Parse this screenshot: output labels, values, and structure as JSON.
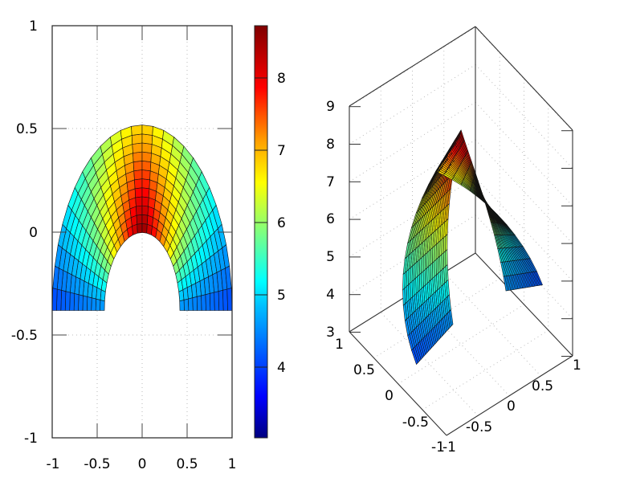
{
  "chart_data": [
    {
      "type": "heatmap",
      "subtype": "projected-surface-map",
      "title": "",
      "xlabel": "",
      "ylabel": "",
      "xlim": [
        -1,
        1
      ],
      "ylim": [
        -1,
        1
      ],
      "x_ticks": [
        "-1",
        "-0.5",
        "0",
        "0.5",
        "1"
      ],
      "y_ticks": [
        "1",
        "0.5",
        "0",
        "-0.5",
        "-1"
      ],
      "grid": true,
      "colorbar": {
        "range": [
          3.1,
          8.7
        ],
        "ticks": [
          "8",
          "7",
          "6",
          "5",
          "4"
        ],
        "palette": [
          "#00007f",
          "#0000ff",
          "#007fff",
          "#00ffff",
          "#7fff7f",
          "#ffff00",
          "#ff7f00",
          "#ff0000",
          "#7f0000"
        ]
      },
      "description": "Arch-shaped mesh surface (top view), apex near y=0.48 at x=0, outer corners at (±1, 0), inner notch tip at (0, 0.06), lower tips near (±0.33, -0.45); color encodes z."
    },
    {
      "type": "surface",
      "subtype": "3d-surface",
      "title": "",
      "x_ticks": [
        "-1",
        "-0.5",
        "0",
        "0.5",
        "1"
      ],
      "y_ticks": [
        "-1",
        "-0.5",
        "0",
        "0.5",
        "1"
      ],
      "z_ticks": [
        "3",
        "4",
        "5",
        "6",
        "7",
        "8",
        "9"
      ],
      "zlim": [
        3,
        9
      ],
      "grid": true,
      "description": "3D view of the same arch surface; peak near z≈8.7, descending to z≈3 at the ends."
    }
  ],
  "left_plot": {
    "x_tick_labels": [
      "-1",
      "-0.5",
      "0",
      "0.5",
      "1"
    ],
    "y_tick_labels": [
      "1",
      "0.5",
      "0",
      "-0.5",
      "-1"
    ],
    "colorbar_labels": [
      "8",
      "7",
      "6",
      "5",
      "4"
    ]
  },
  "right_plot": {
    "z_tick_labels": [
      "9",
      "8",
      "7",
      "6",
      "5",
      "4",
      "3"
    ],
    "y_tick_labels_left": [
      "1",
      "0.5",
      "0",
      "-0.5",
      "-1"
    ],
    "x_tick_labels_right": [
      "-1",
      "-0.5",
      "0",
      "0.5",
      "1"
    ]
  }
}
